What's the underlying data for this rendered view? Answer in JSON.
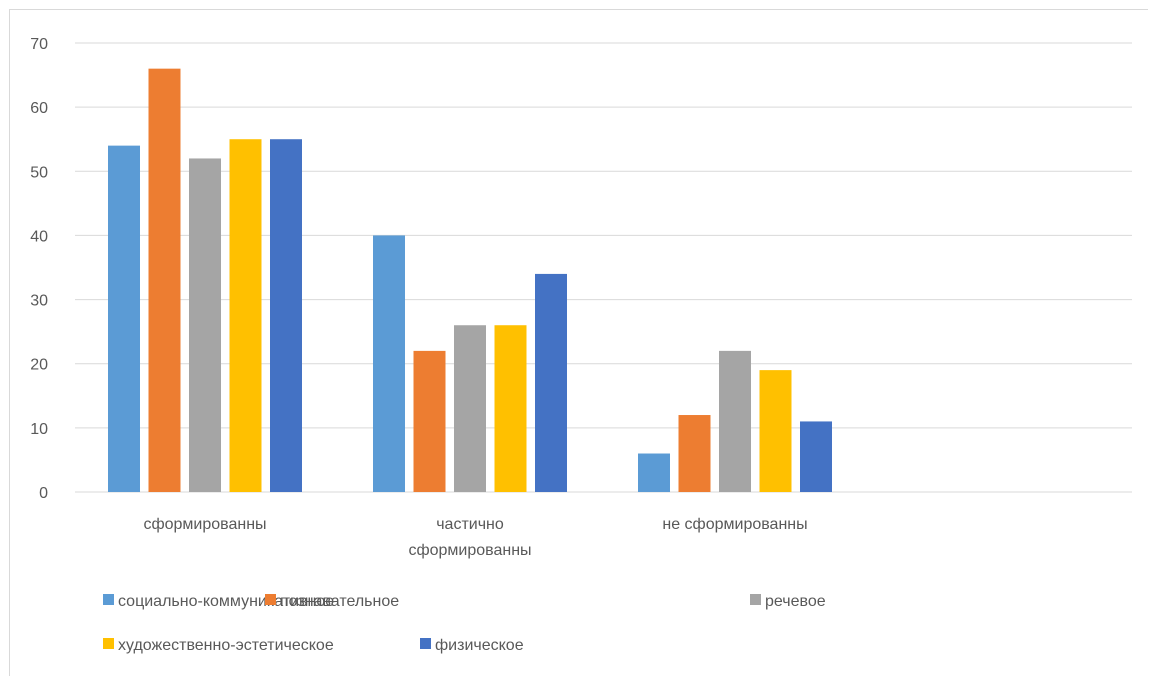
{
  "chart_data": {
    "type": "bar",
    "title": "",
    "xlabel": "",
    "ylabel": "",
    "ylim": [
      0,
      70
    ],
    "yticks": [
      "0",
      "10",
      "20",
      "30",
      "40",
      "50",
      "60",
      "70"
    ],
    "grid": true,
    "legend_position": "bottom",
    "categories": [
      [
        "сформированны"
      ],
      [
        "частично",
        "сформированны"
      ],
      [
        "не сформированны"
      ]
    ],
    "series": [
      {
        "name": "социально-коммуникативное",
        "color": "#5b9bd5",
        "values": [
          54,
          40,
          6
        ]
      },
      {
        "name": "познавательное",
        "color": "#ed7d31",
        "values": [
          66,
          22,
          12
        ]
      },
      {
        "name": "речевое",
        "color": "#a5a5a5",
        "values": [
          52,
          26,
          22
        ]
      },
      {
        "name": "художественно-эстетическое",
        "color": "#ffc000",
        "values": [
          55,
          26,
          19
        ]
      },
      {
        "name": "физическое",
        "color": "#4472c4",
        "values": [
          55,
          34,
          11
        ]
      }
    ]
  }
}
